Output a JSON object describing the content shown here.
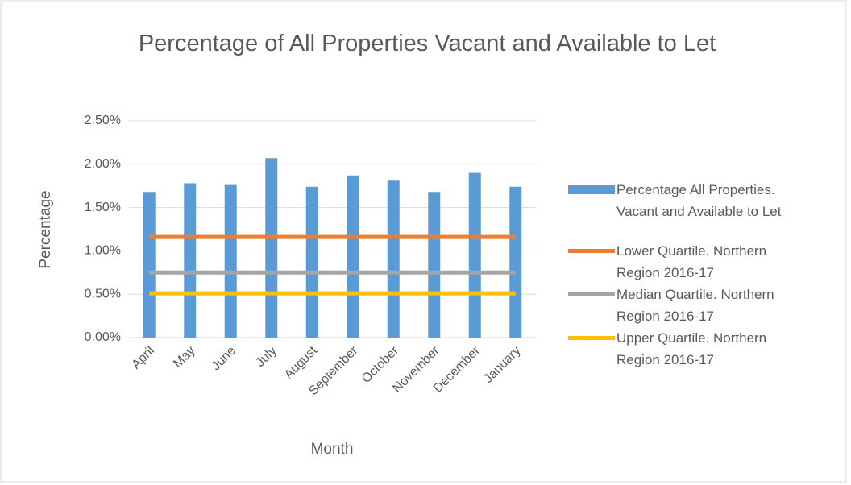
{
  "chart_data": {
    "type": "bar",
    "title": "Percentage of All Properties Vacant and Available to Let",
    "x_label": "Month",
    "y_label": "Percentage",
    "categories": [
      "April",
      "May",
      "June",
      "July",
      "August",
      "September",
      "October",
      "November",
      "December",
      "January"
    ],
    "series": [
      {
        "name": "Percentage All Properties. Vacant and Available to Let",
        "type": "bar",
        "color": "#5b9bd5",
        "values": [
          1.68,
          1.78,
          1.76,
          2.07,
          1.74,
          1.87,
          1.81,
          1.68,
          1.9,
          1.74
        ]
      },
      {
        "name": "Lower Quartile.  Northern Region 2016-17",
        "type": "line",
        "color": "#ed7d31",
        "values": [
          1.16,
          1.16,
          1.16,
          1.16,
          1.16,
          1.16,
          1.16,
          1.16,
          1.16,
          1.16
        ]
      },
      {
        "name": "Median Quartile.  Northern Region 2016-17",
        "type": "line",
        "color": "#a5a5a5",
        "values": [
          0.75,
          0.75,
          0.75,
          0.75,
          0.75,
          0.75,
          0.75,
          0.75,
          0.75,
          0.75
        ]
      },
      {
        "name": "Upper Quartile.  Northern Region 2016-17",
        "type": "line",
        "color": "#ffc000",
        "values": [
          0.51,
          0.51,
          0.51,
          0.51,
          0.51,
          0.51,
          0.51,
          0.51,
          0.51,
          0.51
        ]
      }
    ],
    "ylim": [
      0,
      2.5
    ],
    "yticks": [
      {
        "value": 0,
        "label": "0.00%"
      },
      {
        "value": 0.5,
        "label": "0.50%"
      },
      {
        "value": 1,
        "label": "1.00%"
      },
      {
        "value": 1.5,
        "label": "1.50%"
      },
      {
        "value": 2,
        "label": "2.00%"
      },
      {
        "value": 2.5,
        "label": "2.50%"
      }
    ],
    "grid": true,
    "legend": "right"
  }
}
